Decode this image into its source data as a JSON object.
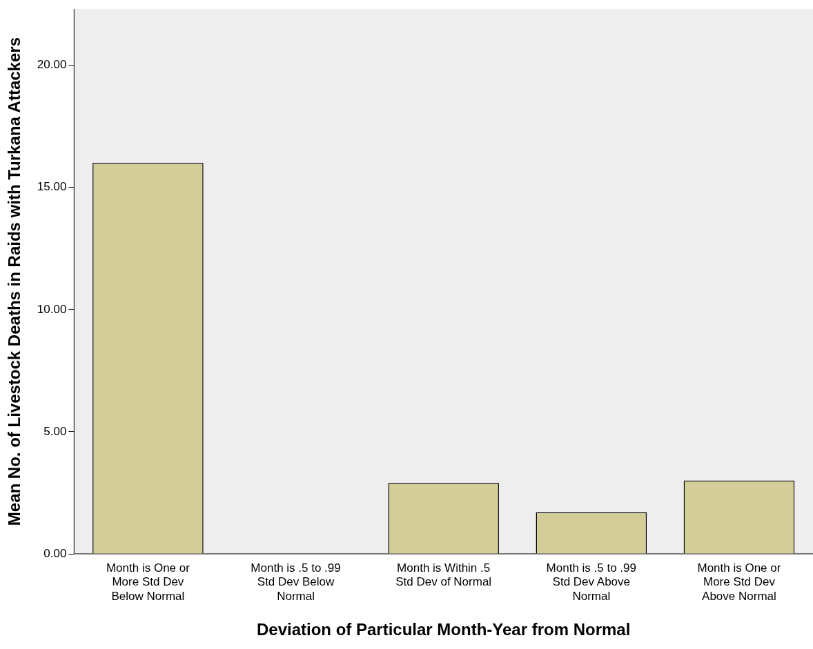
{
  "chart_data": {
    "type": "bar",
    "xlabel": "Deviation of Particular Month-Year from Normal",
    "ylabel": "Mean No. of Livestock Deaths in Raids with Turkana Attackers",
    "categories": [
      "Month is One or More Std Dev Below  Normal",
      "Month is .5 to .99 Std Dev Below Normal",
      "Month is Within .5 Std Dev of Normal",
      "Month is .5 to .99 Std Dev Above Normal",
      "Month is One or More Std Dev Above Normal"
    ],
    "values": [
      16.0,
      0,
      2.9,
      1.7,
      3.0
    ],
    "color": "#d3ce97",
    "ylim": [
      0,
      22.3
    ],
    "yticks": [
      {
        "value": 0,
        "label": "0.00"
      },
      {
        "value": 5,
        "label": "5.00"
      },
      {
        "value": 10,
        "label": "10.00"
      },
      {
        "value": 15,
        "label": "15.00"
      },
      {
        "value": 20,
        "label": "20.00"
      }
    ],
    "grid": false,
    "legend": false
  }
}
